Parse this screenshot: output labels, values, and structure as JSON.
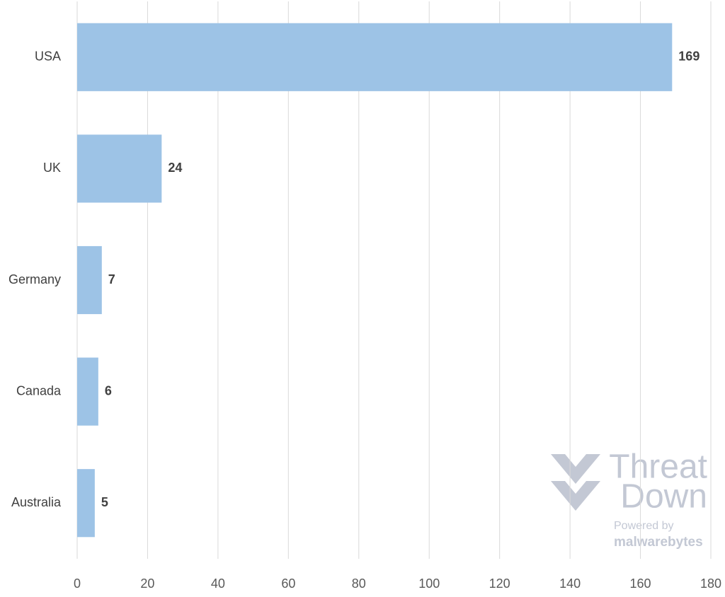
{
  "chart_data": {
    "type": "bar",
    "orientation": "horizontal",
    "categories": [
      "USA",
      "UK",
      "Germany",
      "Canada",
      "Australia"
    ],
    "values": [
      169,
      24,
      7,
      6,
      5
    ],
    "color": "#9dc3e6",
    "xlim": [
      0,
      180
    ],
    "xticks": [
      0,
      20,
      40,
      60,
      80,
      100,
      120,
      140,
      160,
      180
    ],
    "grid": true,
    "watermark": {
      "brand_top": "Threat",
      "brand_bottom": "Down",
      "powered": "Powered by",
      "company": "malwarebytes"
    }
  }
}
